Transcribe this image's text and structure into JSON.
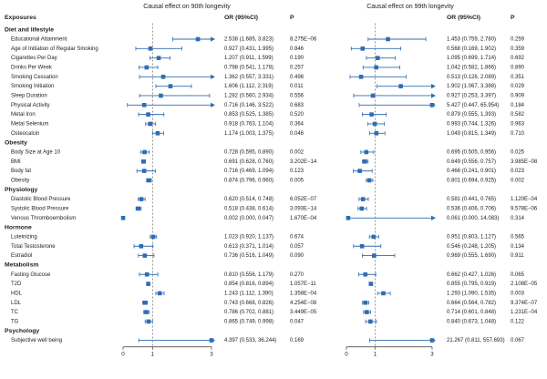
{
  "chart_data": {
    "type": "forest",
    "panels": [
      {
        "title": "Causal effect on 90th longevity",
        "xlim": [
          0,
          3
        ],
        "ticks": [
          0,
          1,
          3
        ],
        "ref_line": 1
      },
      {
        "title": "Causal effect on 99th longevity",
        "xlim": [
          0,
          3
        ],
        "ticks": [
          0,
          1,
          3
        ],
        "ref_line": 1
      }
    ],
    "headers": {
      "exposures": "Exposures",
      "or": "OR (95%CI)",
      "p": "P"
    },
    "rows": [
      {
        "kind": "group",
        "label": "Diet and lifestyle"
      },
      {
        "kind": "item",
        "label": "Educational Attainment",
        "p90": {
          "or": 2.538,
          "lo": 1.685,
          "hi": 3.823,
          "text": "2.538 (1.685, 3.823)",
          "p": "8.275E−06"
        },
        "p99": {
          "or": 1.453,
          "lo": 0.759,
          "hi": 2.78,
          "text": "1.453 (0.759, 2.780)",
          "p": "0.259"
        }
      },
      {
        "kind": "item",
        "label": "Age of Initiation of Regular Smoking",
        "p90": {
          "or": 0.927,
          "lo": 0.431,
          "hi": 1.995,
          "text": "0.927 (0.431, 1.995)",
          "p": "0.846"
        },
        "p99": {
          "or": 0.568,
          "lo": 0.169,
          "hi": 1.902,
          "text": "0.568 (0.169, 1.902)",
          "p": "0.359"
        }
      },
      {
        "kind": "item",
        "label": "Cigarettes Per Day",
        "p90": {
          "or": 1.207,
          "lo": 0.911,
          "hi": 1.599,
          "text": "1.207 (0.911, 1.599)",
          "p": "0.190"
        },
        "p99": {
          "or": 1.095,
          "lo": 0.699,
          "hi": 1.714,
          "text": "1.095 (0.699, 1.714)",
          "p": "0.692"
        }
      },
      {
        "kind": "item",
        "label": "Drinks Per Week",
        "p90": {
          "or": 0.798,
          "lo": 0.541,
          "hi": 1.178,
          "text": "0.798 (0.541, 1.178)",
          "p": "0.257"
        },
        "p99": {
          "or": 1.042,
          "lo": 0.582,
          "hi": 1.866,
          "text": "1.042 (0.582, 1.866)",
          "p": "0.890"
        }
      },
      {
        "kind": "item",
        "label": "Smoking Cessation",
        "p90": {
          "or": 1.362,
          "lo": 0.557,
          "hi": 3.331,
          "text": "1.362 (0.557, 3.331)",
          "p": "0.498"
        },
        "p99": {
          "or": 0.513,
          "lo": 0.126,
          "hi": 2.089,
          "text": "0.513 (0.126, 2.089)",
          "p": "0.351"
        }
      },
      {
        "kind": "item",
        "label": "Smoking Initiation",
        "p90": {
          "or": 1.606,
          "lo": 1.112,
          "hi": 2.319,
          "text": "1.606 (1.112, 2.319)",
          "p": "0.011"
        },
        "p99": {
          "or": 1.902,
          "lo": 1.067,
          "hi": 3.388,
          "text": "1.902 (1.067, 3.388)",
          "p": "0.029"
        }
      },
      {
        "kind": "item",
        "label": "Sleep Duration",
        "p90": {
          "or": 1.282,
          "lo": 0.56,
          "hi": 2.934,
          "text": "1.282 (0.560, 2.934)",
          "p": "0.556"
        },
        "p99": {
          "or": 0.927,
          "lo": 0.253,
          "hi": 3.397,
          "text": "0.927 (0.253, 3.397)",
          "p": "0.909"
        }
      },
      {
        "kind": "item",
        "label": "Physical Activity",
        "p90": {
          "or": 0.716,
          "lo": 0.146,
          "hi": 3.522,
          "text": "0.716 (0.146, 3.522)",
          "p": "0.683"
        },
        "p99": {
          "or": 5.427,
          "lo": 0.447,
          "hi": 65.954,
          "text": "5.427 (0.447, 65.954)",
          "p": "0.184"
        }
      },
      {
        "kind": "item",
        "label": "Metal Iron",
        "p90": {
          "or": 0.853,
          "lo": 0.525,
          "hi": 1.385,
          "text": "0.853 (0.525, 1.385)",
          "p": "0.520"
        },
        "p99": {
          "or": 0.879,
          "lo": 0.555,
          "hi": 1.393,
          "text": "0.879 (0.555, 1.393)",
          "p": "0.582"
        }
      },
      {
        "kind": "item",
        "label": "Metal Selenium",
        "p90": {
          "or": 0.918,
          "lo": 0.763,
          "hi": 1.104,
          "text": "0.918 (0.763, 1.104)",
          "p": "0.364"
        },
        "p99": {
          "or": 0.993,
          "lo": 0.744,
          "hi": 1.326,
          "text": "0.993 (0.744, 1.326)",
          "p": "0.963"
        }
      },
      {
        "kind": "item",
        "label": "Osteocalcin",
        "p90": {
          "or": 1.174,
          "lo": 1.003,
          "hi": 1.375,
          "text": "1.174 (1.003, 1.375)",
          "p": "0.046"
        },
        "p99": {
          "or": 1.049,
          "lo": 0.815,
          "hi": 1.349,
          "text": "1.049 (0.815, 1.349)",
          "p": "0.710"
        }
      },
      {
        "kind": "group",
        "label": "Obesity"
      },
      {
        "kind": "item",
        "label": "Body Size at Age 10",
        "p90": {
          "or": 0.728,
          "lo": 0.595,
          "hi": 0.89,
          "text": "0.728 (0.595, 0.890)",
          "p": "0.002"
        },
        "p99": {
          "or": 0.695,
          "lo": 0.505,
          "hi": 0.956,
          "text": "0.695 (0.505, 0.956)",
          "p": "0.025"
        }
      },
      {
        "kind": "item",
        "label": "BMI",
        "p90": {
          "or": 0.691,
          "lo": 0.628,
          "hi": 0.76,
          "text": "0.691 (0.628, 0.760)",
          "p": "3.202E−14"
        },
        "p99": {
          "or": 0.649,
          "lo": 0.556,
          "hi": 0.757,
          "text": "0.649 (0.556, 0.757)",
          "p": "3.985E−08"
        }
      },
      {
        "kind": "item",
        "label": "Body fat",
        "p90": {
          "or": 0.716,
          "lo": 0.469,
          "hi": 1.094,
          "text": "0.716 (0.469, 1.094)",
          "p": "0.123"
        },
        "p99": {
          "or": 0.466,
          "lo": 0.241,
          "hi": 0.901,
          "text": "0.466 (0.241, 0.901)",
          "p": "0.023"
        }
      },
      {
        "kind": "item",
        "label": "Obesity",
        "p90": {
          "or": 0.874,
          "lo": 0.796,
          "hi": 0.96,
          "text": "0.874 (0.796, 0.960)",
          "p": "0.005"
        },
        "p99": {
          "or": 0.801,
          "lo": 0.694,
          "hi": 0.925,
          "text": "0.801 (0.694, 0.925)",
          "p": "0.002"
        }
      },
      {
        "kind": "group",
        "label": "Physiology"
      },
      {
        "kind": "item",
        "label": "Diastolic Blood Pressure",
        "p90": {
          "or": 0.62,
          "lo": 0.514,
          "hi": 0.748,
          "text": "0.620 (0.514, 0.748)",
          "p": "6.052E−07"
        },
        "p99": {
          "or": 0.581,
          "lo": 0.441,
          "hi": 0.765,
          "text": "0.581 (0.441, 0.765)",
          "p": "1.120E−04"
        }
      },
      {
        "kind": "item",
        "label": "Systolic Blood Pressure",
        "p90": {
          "or": 0.518,
          "lo": 0.438,
          "hi": 0.614,
          "text": "0.518 (0.438, 0.614)",
          "p": "3.093E−14"
        },
        "p99": {
          "or": 0.536,
          "lo": 0.406,
          "hi": 0.706,
          "text": "0.536 (0.406, 0.706)",
          "p": "9.578E−06"
        }
      },
      {
        "kind": "item",
        "label": "Venous Thromboembolism",
        "p90": {
          "or": 0.002,
          "lo": 0.0,
          "hi": 0.047,
          "text": "0.002 (0.000, 0.047)",
          "p": "1.670E−04"
        },
        "p99": {
          "or": 0.061,
          "lo": 0.0,
          "hi": 14.083,
          "text": "0.061 (0.000, 14.083)",
          "p": "0.314"
        }
      },
      {
        "kind": "group",
        "label": "Hormone"
      },
      {
        "kind": "item",
        "label": "Luteinizing",
        "p90": {
          "or": 1.023,
          "lo": 0.92,
          "hi": 1.137,
          "text": "1.023 (0.920, 1.137)",
          "p": "0.674"
        },
        "p99": {
          "or": 0.951,
          "lo": 0.803,
          "hi": 1.127,
          "text": "0.951 (0.803, 1.127)",
          "p": "0.565"
        }
      },
      {
        "kind": "item",
        "label": "Total Testosterone",
        "p90": {
          "or": 0.613,
          "lo": 0.371,
          "hi": 1.014,
          "text": "0.613 (0.371, 1.014)",
          "p": "0.057"
        },
        "p99": {
          "or": 0.546,
          "lo": 0.248,
          "hi": 1.205,
          "text": "0.546 (0.248, 1.205)",
          "p": "0.134"
        }
      },
      {
        "kind": "item",
        "label": "Estradiol",
        "p90": {
          "or": 0.736,
          "lo": 0.516,
          "hi": 1.049,
          "text": "0.736 (0.516, 1.049)",
          "p": "0.090"
        },
        "p99": {
          "or": 0.969,
          "lo": 0.555,
          "hi": 1.69,
          "text": "0.969 (0.555, 1.690)",
          "p": "0.911"
        }
      },
      {
        "kind": "group",
        "label": "Metabolism"
      },
      {
        "kind": "item",
        "label": "Fasting Glucose",
        "p90": {
          "or": 0.81,
          "lo": 0.556,
          "hi": 1.179,
          "text": "0.810 (0.556, 1.179)",
          "p": "0.270"
        },
        "p99": {
          "or": 0.662,
          "lo": 0.427,
          "hi": 1.026,
          "text": "0.662 (0.427, 1.026)",
          "p": "0.065"
        }
      },
      {
        "kind": "item",
        "label": "T2D",
        "p90": {
          "or": 0.854,
          "lo": 0.816,
          "hi": 0.894,
          "text": "0.854 (0.816, 0.894)",
          "p": "1.057E−11"
        },
        "p99": {
          "or": 0.855,
          "lo": 0.795,
          "hi": 0.919,
          "text": "0.855 (0.795, 0.919)",
          "p": "2.108E−05"
        }
      },
      {
        "kind": "item",
        "label": "HDL",
        "p90": {
          "or": 1.243,
          "lo": 1.112,
          "hi": 1.39,
          "text": "1.243 (1.112, 1.390)",
          "p": "1.358E−04"
        },
        "p99": {
          "or": 1.293,
          "lo": 1.09,
          "hi": 1.535,
          "text": "1.293 (1.090, 1.535)",
          "p": "0.003"
        }
      },
      {
        "kind": "item",
        "label": "LDL",
        "p90": {
          "or": 0.743,
          "lo": 0.668,
          "hi": 0.826,
          "text": "0.743 (0.668, 0.826)",
          "p": "4.254E−08"
        },
        "p99": {
          "or": 0.664,
          "lo": 0.564,
          "hi": 0.782,
          "text": "0.664 (0.564, 0.782)",
          "p": "9.374E−07"
        }
      },
      {
        "kind": "item",
        "label": "TC",
        "p90": {
          "or": 0.786,
          "lo": 0.702,
          "hi": 0.881,
          "text": "0.786 (0.702, 0.881)",
          "p": "3.449E−05"
        },
        "p99": {
          "or": 0.714,
          "lo": 0.601,
          "hi": 0.848,
          "text": "0.714 (0.601, 0.848)",
          "p": "1.231E−04"
        }
      },
      {
        "kind": "item",
        "label": "TG",
        "p90": {
          "or": 0.865,
          "lo": 0.749,
          "hi": 0.998,
          "text": "0.865 (0.749, 0.998)",
          "p": "0.047"
        },
        "p99": {
          "or": 0.84,
          "lo": 0.673,
          "hi": 1.048,
          "text": "0.840 (0.673, 1.048)",
          "p": "0.122"
        }
      },
      {
        "kind": "group",
        "label": "Psychology"
      },
      {
        "kind": "item",
        "label": "Subjective well being",
        "p90": {
          "or": 4.397,
          "lo": 0.533,
          "hi": 36.244,
          "text": "4.397 (0.533, 36.244)",
          "p": "0.169"
        },
        "p99": {
          "or": 21.267,
          "lo": 0.811,
          "hi": 557.693,
          "text": "21.267 (0.811, 557.693)",
          "p": "0.067"
        }
      }
    ],
    "colors": {
      "marker": "#2e6db4",
      "text": "#222222",
      "axis": "#333333"
    }
  }
}
